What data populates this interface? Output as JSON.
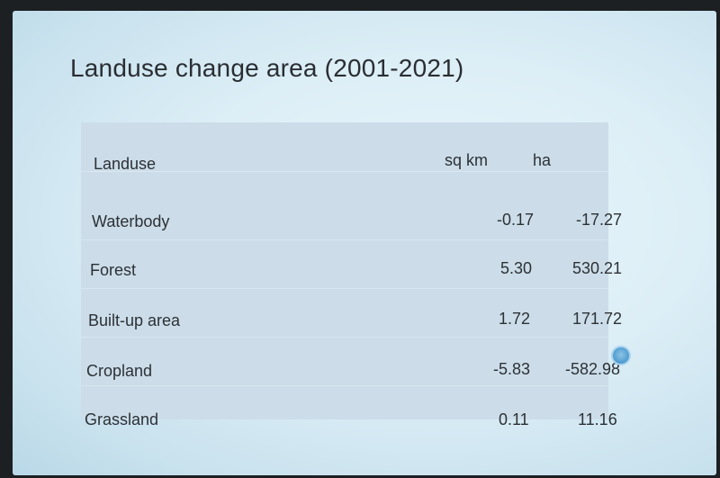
{
  "title": "Landuse change area (2001-2021)",
  "table": {
    "headers": [
      "Landuse",
      "sq km",
      "ha"
    ],
    "rows": [
      {
        "landuse": "Waterbody",
        "sq_km": "-0.17",
        "ha": "-17.27"
      },
      {
        "landuse": "Forest",
        "sq_km": "5.30",
        "ha": "530.21"
      },
      {
        "landuse": "Built-up area",
        "sq_km": "1.72",
        "ha": "171.72"
      },
      {
        "landuse": "Cropland",
        "sq_km": "-5.83",
        "ha": "-582.98"
      },
      {
        "landuse": "Grassland",
        "sq_km": "0.11",
        "ha": "11.16"
      }
    ]
  },
  "colors": {
    "slide_bg": "#dceef6",
    "table_bg": "#ccdde9",
    "text": "#2c3136",
    "indicator": "#5aa3d3"
  },
  "icons": {
    "pointer_indicator": "presentation-pointer-icon"
  }
}
